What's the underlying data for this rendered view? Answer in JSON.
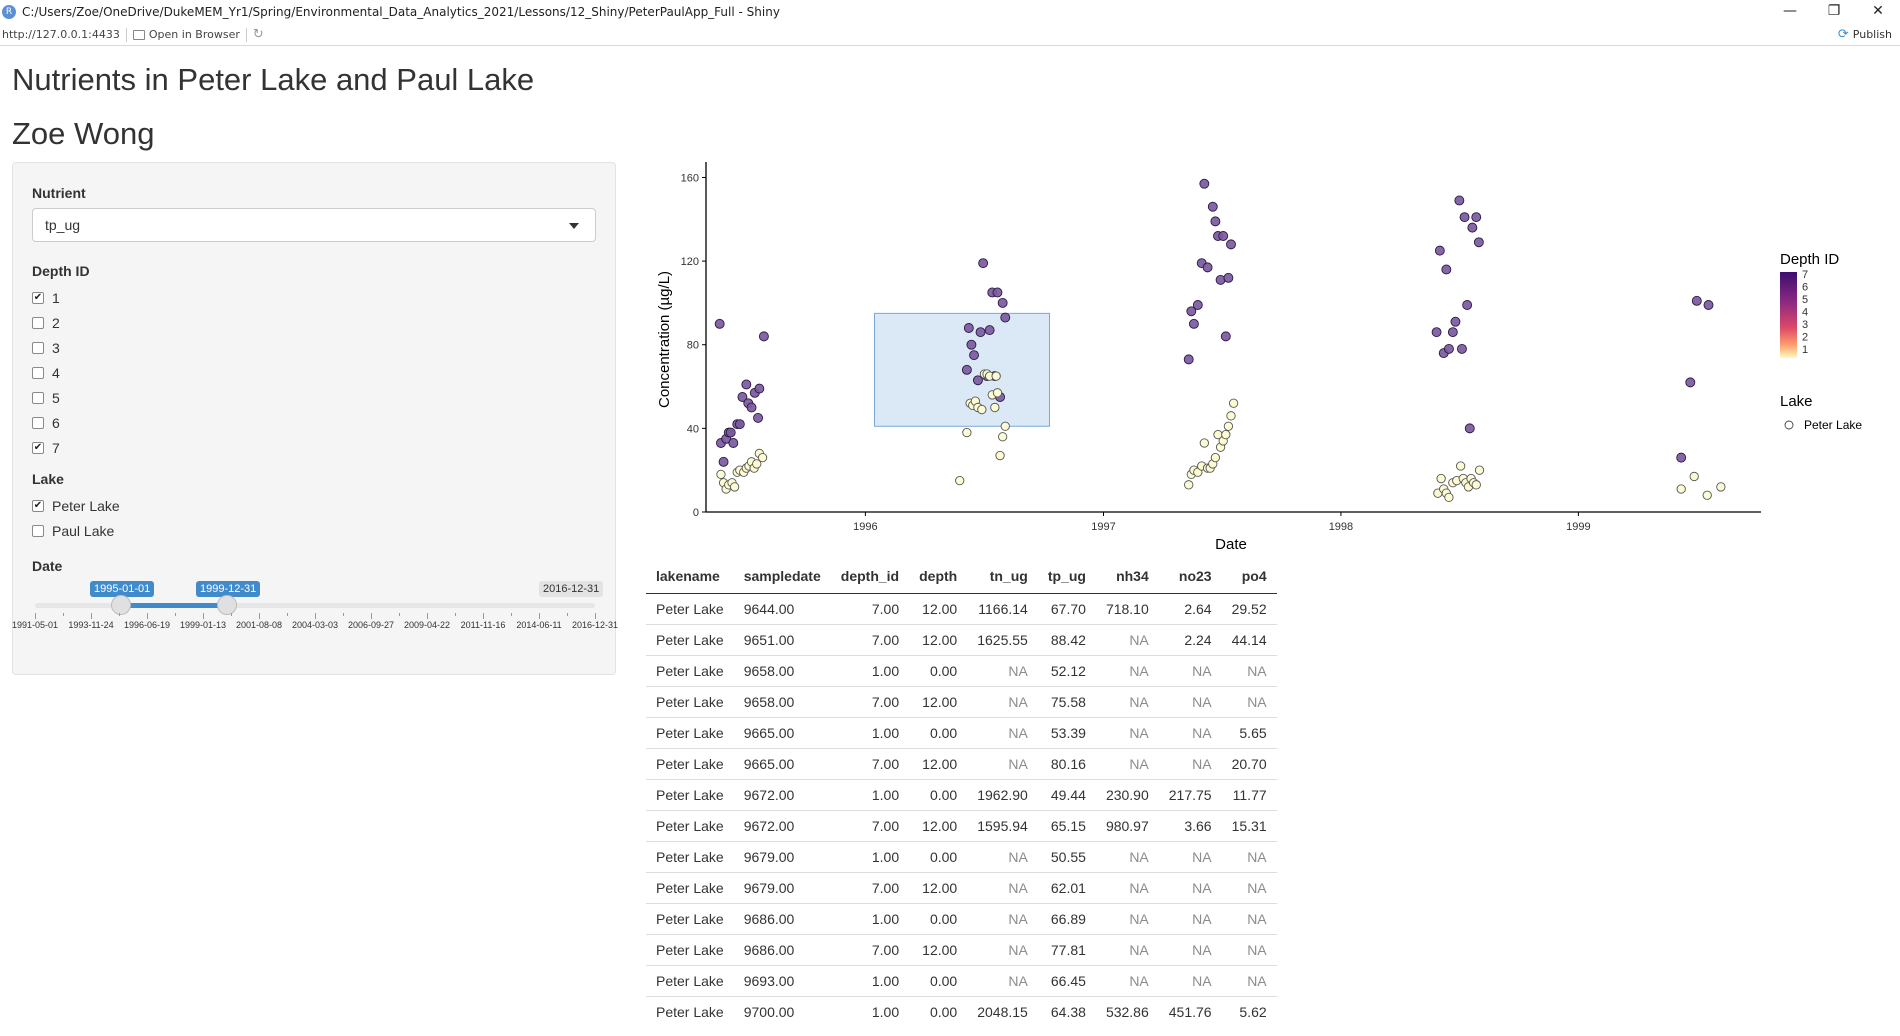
{
  "window": {
    "title": "C:/Users/Zoe/OneDrive/DukeMEM_Yr1/Spring/Environmental_Data_Analytics_2021/Lessons/12_Shiny/PeterPaulApp_Full - Shiny",
    "minimize": "—",
    "restore": "❐",
    "close": "✕"
  },
  "toolbar": {
    "url": "http://127.0.0.1:4433",
    "open_browser": "Open in Browser",
    "publish": "Publish"
  },
  "app": {
    "title": "Nutrients in Peter Lake and Paul Lake",
    "subtitle": "Zoe Wong"
  },
  "sidebar": {
    "nutrient_label": "Nutrient",
    "nutrient_value": "tp_ug",
    "depth_label": "Depth ID",
    "depth_options": [
      {
        "label": "1",
        "checked": true
      },
      {
        "label": "2",
        "checked": false
      },
      {
        "label": "3",
        "checked": false
      },
      {
        "label": "4",
        "checked": false
      },
      {
        "label": "5",
        "checked": false
      },
      {
        "label": "6",
        "checked": false
      },
      {
        "label": "7",
        "checked": true
      }
    ],
    "lake_label": "Lake",
    "lake_options": [
      {
        "label": "Peter Lake",
        "checked": true
      },
      {
        "label": "Paul Lake",
        "checked": false
      }
    ],
    "date_label": "Date",
    "date_from": "1995-01-01",
    "date_to": "1999-12-31",
    "date_max": "2016-12-31",
    "date_ticks": [
      "1991-05-01",
      "1993-11-24",
      "1996-06-19",
      "1999-01-13",
      "2001-08-08",
      "2004-03-03",
      "2006-09-27",
      "2009-04-22",
      "2011-11-16",
      "2014-06-11",
      "2016-12-31"
    ]
  },
  "colors": {
    "accent": "#428bca",
    "selection": "#dbe9f7",
    "deep": "#7b5aa0",
    "shallow": "#fcfbd3"
  },
  "chart_data": {
    "type": "scatter",
    "xlabel": "Date",
    "ylabel": "Concentration (µg/L)",
    "xticks": [
      "1996",
      "1997",
      "1998",
      "1999"
    ],
    "yticks": [
      0,
      40,
      80,
      120,
      160
    ],
    "ylim": [
      0,
      165
    ],
    "xlim": [
      "1995-05-01",
      "1999-10-01"
    ],
    "legend_depth_title": "Depth ID",
    "legend_depth_levels": [
      "7",
      "6",
      "5",
      "4",
      "3",
      "2",
      "1"
    ],
    "legend_lake_title": "Lake",
    "legend_lake_entry": "Peter Lake",
    "brush": {
      "x": [
        "1996-01-15",
        "1996-10-10"
      ],
      "y": [
        41,
        95
      ]
    },
    "series": [
      {
        "name": "7",
        "points": [
          [
            "1995-05-22",
            90
          ],
          [
            "1995-05-24",
            33
          ],
          [
            "1995-06-01",
            35
          ],
          [
            "1995-06-05",
            38
          ],
          [
            "1995-06-08",
            38
          ],
          [
            "1995-06-12",
            33
          ],
          [
            "1995-06-18",
            42
          ],
          [
            "1995-06-22",
            42
          ],
          [
            "1995-06-26",
            55
          ],
          [
            "1995-07-02",
            61
          ],
          [
            "1995-07-05",
            52
          ],
          [
            "1995-07-10",
            50
          ],
          [
            "1995-07-15",
            57
          ],
          [
            "1995-07-20",
            45
          ],
          [
            "1995-07-22",
            59
          ],
          [
            "1995-07-29",
            84
          ],
          [
            "1995-05-28",
            24
          ],
          [
            "1996-06-05",
            68
          ],
          [
            "1996-06-08",
            88
          ],
          [
            "1996-06-12",
            80
          ],
          [
            "1996-06-16",
            75
          ],
          [
            "1996-06-22",
            63
          ],
          [
            "1996-06-26",
            86
          ],
          [
            "1996-06-30",
            119
          ],
          [
            "1996-07-06",
            65
          ],
          [
            "1996-07-10",
            87
          ],
          [
            "1996-07-14",
            105
          ],
          [
            "1996-07-22",
            105
          ],
          [
            "1996-07-26",
            55
          ],
          [
            "1996-07-30",
            100
          ],
          [
            "1996-08-03",
            93
          ],
          [
            "1996-07-18",
            65
          ],
          [
            "1997-05-12",
            73
          ],
          [
            "1997-05-16",
            96
          ],
          [
            "1997-05-20",
            90
          ],
          [
            "1997-05-26",
            99
          ],
          [
            "1997-06-01",
            119
          ],
          [
            "1997-06-05",
            157
          ],
          [
            "1997-06-10",
            117
          ],
          [
            "1997-06-18",
            146
          ],
          [
            "1997-06-22",
            139
          ],
          [
            "1997-06-26",
            132
          ],
          [
            "1997-06-30",
            111
          ],
          [
            "1997-07-04",
            132
          ],
          [
            "1997-07-08",
            84
          ],
          [
            "1997-07-12",
            112
          ],
          [
            "1997-07-16",
            128
          ],
          [
            "1998-05-28",
            86
          ],
          [
            "1998-06-02",
            125
          ],
          [
            "1998-06-08",
            76
          ],
          [
            "1998-06-12",
            116
          ],
          [
            "1998-06-16",
            78
          ],
          [
            "1998-06-22",
            86
          ],
          [
            "1998-06-26",
            91
          ],
          [
            "1998-07-02",
            149
          ],
          [
            "1998-07-06",
            78
          ],
          [
            "1998-07-10",
            141
          ],
          [
            "1998-07-14",
            99
          ],
          [
            "1998-07-18",
            40
          ],
          [
            "1998-07-22",
            136
          ],
          [
            "1998-07-28",
            141
          ],
          [
            "1998-08-01",
            129
          ],
          [
            "1999-06-08",
            26
          ],
          [
            "1999-06-22",
            62
          ],
          [
            "1999-07-02",
            101
          ],
          [
            "1999-07-20",
            99
          ]
        ]
      },
      {
        "name": "1",
        "points": [
          [
            "1995-05-24",
            18
          ],
          [
            "1995-05-28",
            14
          ],
          [
            "1995-06-01",
            11
          ],
          [
            "1995-06-05",
            13
          ],
          [
            "1995-06-10",
            14
          ],
          [
            "1995-06-14",
            12
          ],
          [
            "1995-06-18",
            19
          ],
          [
            "1995-06-22",
            20
          ],
          [
            "1995-06-28",
            19
          ],
          [
            "1995-07-02",
            21
          ],
          [
            "1995-07-06",
            22
          ],
          [
            "1995-07-10",
            24
          ],
          [
            "1995-07-14",
            21
          ],
          [
            "1995-07-18",
            23
          ],
          [
            "1995-07-22",
            28
          ],
          [
            "1995-07-27",
            26
          ],
          [
            "1996-05-25",
            15
          ],
          [
            "1996-06-05",
            38
          ],
          [
            "1996-06-10",
            52
          ],
          [
            "1996-06-14",
            51
          ],
          [
            "1996-06-18",
            53
          ],
          [
            "1996-06-22",
            50
          ],
          [
            "1996-06-28",
            49
          ],
          [
            "1996-07-02",
            66
          ],
          [
            "1996-07-06",
            66
          ],
          [
            "1996-07-10",
            65
          ],
          [
            "1996-07-14",
            56
          ],
          [
            "1996-07-18",
            50
          ],
          [
            "1996-07-22",
            57
          ],
          [
            "1996-07-26",
            27
          ],
          [
            "1996-07-30",
            36
          ],
          [
            "1996-08-03",
            41
          ],
          [
            "1996-07-20",
            65
          ],
          [
            "1997-05-12",
            13
          ],
          [
            "1997-05-16",
            18
          ],
          [
            "1997-05-20",
            20
          ],
          [
            "1997-05-26",
            19
          ],
          [
            "1997-06-01",
            22
          ],
          [
            "1997-06-05",
            33
          ],
          [
            "1997-06-10",
            21
          ],
          [
            "1997-06-14",
            21
          ],
          [
            "1997-06-18",
            23
          ],
          [
            "1997-06-22",
            26
          ],
          [
            "1997-06-26",
            37
          ],
          [
            "1997-06-30",
            31
          ],
          [
            "1997-07-04",
            34
          ],
          [
            "1997-07-08",
            37
          ],
          [
            "1997-07-12",
            41
          ],
          [
            "1997-07-16",
            46
          ],
          [
            "1997-07-20",
            52
          ],
          [
            "1998-05-30",
            9
          ],
          [
            "1998-06-04",
            16
          ],
          [
            "1998-06-08",
            11
          ],
          [
            "1998-06-12",
            9
          ],
          [
            "1998-06-16",
            7
          ],
          [
            "1998-06-22",
            14
          ],
          [
            "1998-06-28",
            15
          ],
          [
            "1998-07-04",
            22
          ],
          [
            "1998-07-08",
            16
          ],
          [
            "1998-07-12",
            14
          ],
          [
            "1998-07-16",
            12
          ],
          [
            "1998-07-20",
            16
          ],
          [
            "1998-07-24",
            14
          ],
          [
            "1998-07-28",
            13
          ],
          [
            "1998-08-02",
            20
          ],
          [
            "1999-06-08",
            11
          ],
          [
            "1999-06-28",
            17
          ],
          [
            "1999-07-18",
            8
          ],
          [
            "1999-08-08",
            12
          ]
        ]
      }
    ]
  },
  "table": {
    "columns": [
      "lakename",
      "sampledate",
      "depth_id",
      "depth",
      "tn_ug",
      "tp_ug",
      "nh34",
      "no23",
      "po4"
    ],
    "rows": [
      [
        "Peter Lake",
        "9644.00",
        "7.00",
        "12.00",
        "1166.14",
        "67.70",
        "718.10",
        "2.64",
        "29.52"
      ],
      [
        "Peter Lake",
        "9651.00",
        "7.00",
        "12.00",
        "1625.55",
        "88.42",
        "NA",
        "2.24",
        "44.14"
      ],
      [
        "Peter Lake",
        "9658.00",
        "1.00",
        "0.00",
        "NA",
        "52.12",
        "NA",
        "NA",
        "NA"
      ],
      [
        "Peter Lake",
        "9658.00",
        "7.00",
        "12.00",
        "NA",
        "75.58",
        "NA",
        "NA",
        "NA"
      ],
      [
        "Peter Lake",
        "9665.00",
        "1.00",
        "0.00",
        "NA",
        "53.39",
        "NA",
        "NA",
        "5.65"
      ],
      [
        "Peter Lake",
        "9665.00",
        "7.00",
        "12.00",
        "NA",
        "80.16",
        "NA",
        "NA",
        "20.70"
      ],
      [
        "Peter Lake",
        "9672.00",
        "1.00",
        "0.00",
        "1962.90",
        "49.44",
        "230.90",
        "217.75",
        "11.77"
      ],
      [
        "Peter Lake",
        "9672.00",
        "7.00",
        "12.00",
        "1595.94",
        "65.15",
        "980.97",
        "3.66",
        "15.31"
      ],
      [
        "Peter Lake",
        "9679.00",
        "1.00",
        "0.00",
        "NA",
        "50.55",
        "NA",
        "NA",
        "NA"
      ],
      [
        "Peter Lake",
        "9679.00",
        "7.00",
        "12.00",
        "NA",
        "62.01",
        "NA",
        "NA",
        "NA"
      ],
      [
        "Peter Lake",
        "9686.00",
        "1.00",
        "0.00",
        "NA",
        "66.89",
        "NA",
        "NA",
        "NA"
      ],
      [
        "Peter Lake",
        "9686.00",
        "7.00",
        "12.00",
        "NA",
        "77.81",
        "NA",
        "NA",
        "NA"
      ],
      [
        "Peter Lake",
        "9693.00",
        "1.00",
        "0.00",
        "NA",
        "66.45",
        "NA",
        "NA",
        "NA"
      ],
      [
        "Peter Lake",
        "9700.00",
        "1.00",
        "0.00",
        "2048.15",
        "64.38",
        "532.86",
        "451.76",
        "5.62"
      ]
    ]
  }
}
